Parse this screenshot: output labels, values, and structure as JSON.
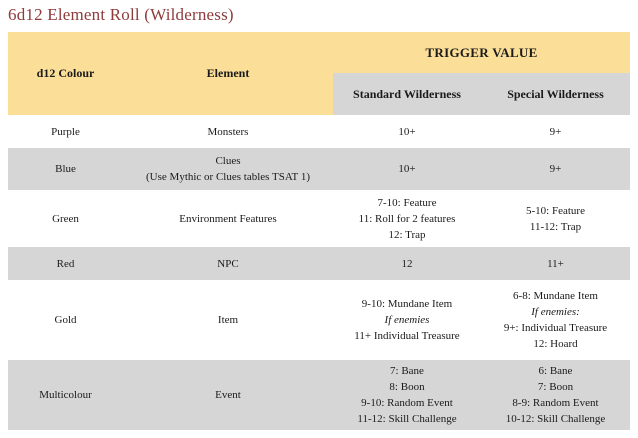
{
  "title": "6d12 Element Roll (Wilderness)",
  "colors": {
    "header_yellow": "#fbde97",
    "row_gray": "#d6d6d6",
    "title_red": "#8e3b3b",
    "text": "#1b1b1b"
  },
  "table": {
    "columns": {
      "col1": "d12 Colour",
      "col2": "Element",
      "trigger_group": "TRIGGER VALUE",
      "col3": "Standard Wilderness",
      "col4": "Special Wilderness"
    },
    "rows": [
      {
        "colour": "Purple",
        "element": [
          "Monsters"
        ],
        "standard": [
          "10+"
        ],
        "special": [
          "9+"
        ]
      },
      {
        "colour": "Blue",
        "element": [
          "Clues",
          "(Use Mythic or Clues tables TSAT 1)"
        ],
        "standard": [
          "10+"
        ],
        "special": [
          "9+"
        ]
      },
      {
        "colour": "Green",
        "element": [
          "Environment Features"
        ],
        "standard": [
          "7-10: Feature",
          "11: Roll for 2 features",
          "12: Trap"
        ],
        "special": [
          "5-10: Feature",
          "11-12: Trap"
        ]
      },
      {
        "colour": "Red",
        "element": [
          "NPC"
        ],
        "standard": [
          "12"
        ],
        "special": [
          "11+"
        ]
      },
      {
        "colour": "Gold",
        "element": [
          "Item"
        ],
        "standard": [
          "9-10: Mundane Item",
          {
            "text": "If enemies",
            "italic": true
          },
          "11+ Individual Treasure"
        ],
        "special": [
          "6-8: Mundane Item",
          {
            "text": "If enemies:",
            "italic": true
          },
          "9+: Individual Treasure",
          "12: Hoard"
        ]
      },
      {
        "colour": "Multicolour",
        "element": [
          "Event"
        ],
        "standard": [
          "7: Bane",
          "8: Boon",
          "9-10: Random Event",
          "11-12: Skill Challenge"
        ],
        "special": [
          "6: Bane",
          "7: Boon",
          "8-9: Random Event",
          "10-12: Skill Challenge"
        ]
      }
    ]
  }
}
